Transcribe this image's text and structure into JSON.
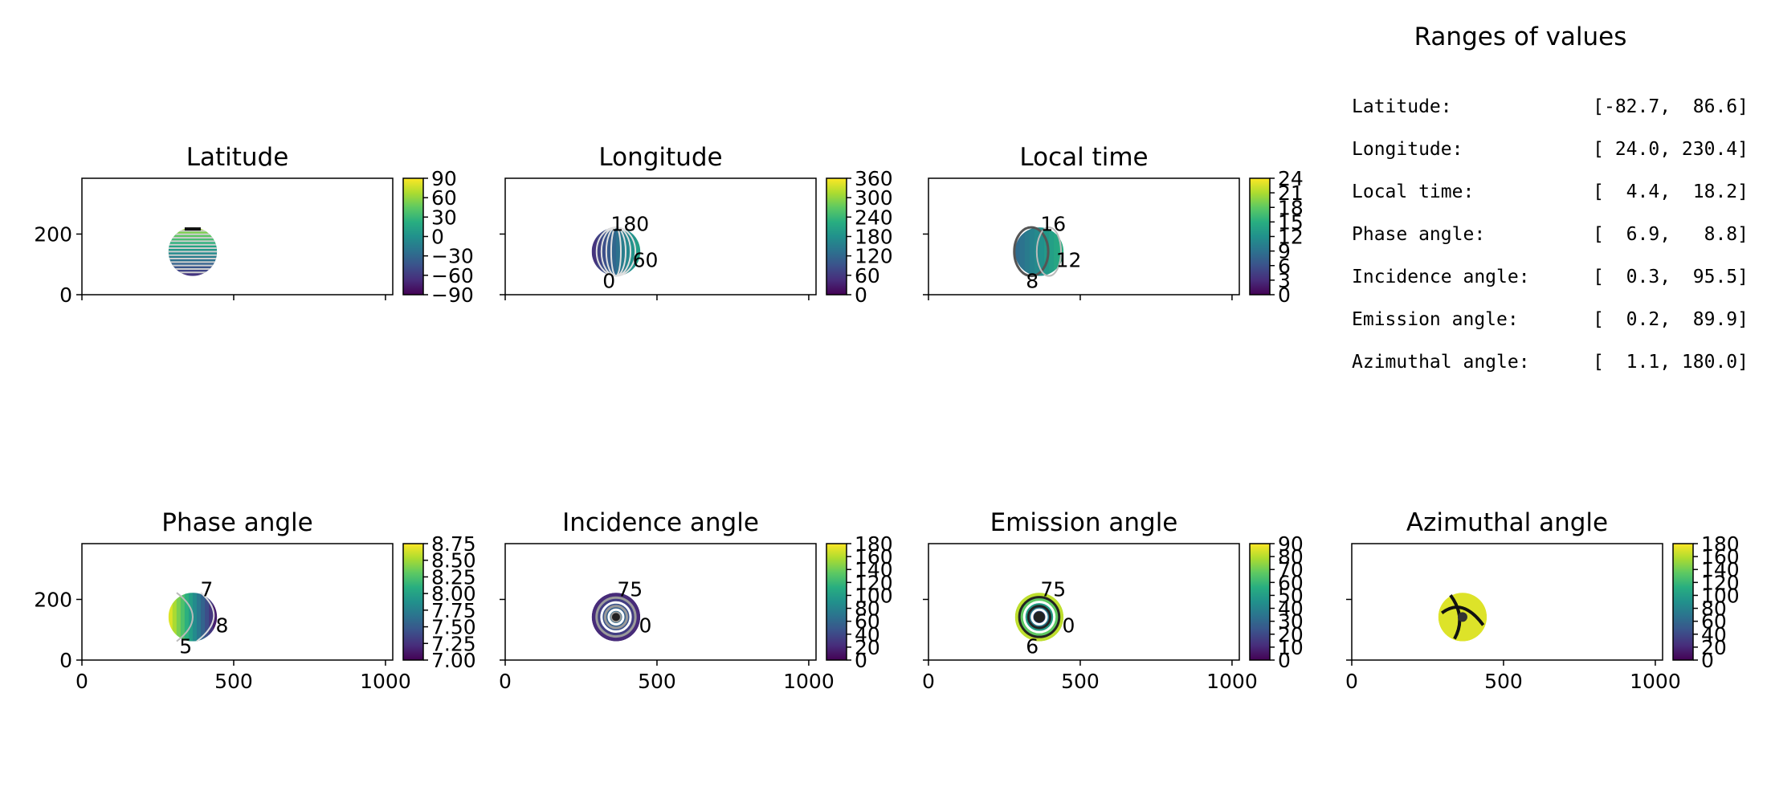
{
  "chart_data": {
    "type": "heatmap",
    "panels": [
      {
        "title": "Latitude",
        "cbar_ticks": [
          "90",
          "60",
          "30",
          "0",
          "−30",
          "−60",
          "−90"
        ],
        "vmin": -90,
        "vmax": 90,
        "contour_labels": [],
        "xticklabels": [
          "",
          "",
          ""
        ],
        "yticklabels": [
          "200",
          "0"
        ]
      },
      {
        "title": "Longitude",
        "cbar_ticks": [
          "360",
          "300",
          "240",
          "180",
          "120",
          "60",
          "0"
        ],
        "vmin": 0,
        "vmax": 360,
        "contour_labels": [
          "180",
          "60",
          "0"
        ],
        "xticklabels": [
          "",
          "",
          ""
        ],
        "yticklabels": [
          "",
          ""
        ]
      },
      {
        "title": "Local time",
        "cbar_ticks": [
          "24",
          "21",
          "18",
          "15",
          "12",
          "9",
          "6",
          "3",
          "0"
        ],
        "vmin": 0,
        "vmax": 24,
        "contour_labels": [
          "16",
          "12",
          "8"
        ],
        "xticklabels": [
          "",
          "",
          ""
        ],
        "yticklabels": [
          "",
          ""
        ]
      },
      {
        "title": "Phase angle",
        "cbar_ticks": [
          "8.75",
          "8.50",
          "8.25",
          "8.00",
          "7.75",
          "7.50",
          "7.25",
          "7.00"
        ],
        "vmin": 6.9,
        "vmax": 8.8,
        "contour_labels": [
          "7",
          "8",
          "5"
        ],
        "xticklabels": [
          "0",
          "500",
          "1000"
        ],
        "yticklabels": [
          "200",
          "0"
        ]
      },
      {
        "title": "Incidence angle",
        "cbar_ticks": [
          "180",
          "160",
          "140",
          "120",
          "100",
          "80",
          "60",
          "40",
          "20",
          "0"
        ],
        "vmin": 0,
        "vmax": 180,
        "contour_labels": [
          "75",
          "0"
        ],
        "xticklabels": [
          "0",
          "500",
          "1000"
        ],
        "yticklabels": [
          "",
          ""
        ]
      },
      {
        "title": "Emission angle",
        "cbar_ticks": [
          "90",
          "80",
          "70",
          "60",
          "50",
          "40",
          "30",
          "20",
          "10",
          "0"
        ],
        "vmin": 0,
        "vmax": 90,
        "contour_labels": [
          "75",
          "0",
          "6"
        ],
        "xticklabels": [
          "0",
          "500",
          "1000"
        ],
        "yticklabels": [
          "",
          ""
        ]
      },
      {
        "title": "Azimuthal angle",
        "cbar_ticks": [
          "180",
          "160",
          "140",
          "120",
          "100",
          "80",
          "60",
          "40",
          "20",
          "0"
        ],
        "vmin": 0,
        "vmax": 180,
        "contour_labels": [],
        "xticklabels": [
          "0",
          "500",
          "1000"
        ],
        "yticklabels": [
          "",
          ""
        ]
      }
    ],
    "x_range": [
      0,
      1024
    ],
    "y_range": [
      0,
      384
    ],
    "colormap": "viridis",
    "disc": {
      "center_x": 365,
      "center_y": 142,
      "radius": 80
    },
    "ranges_table": {
      "title": "Ranges of values",
      "rows": [
        {
          "label": "Latitude:",
          "range": "[-82.7,  86.6]"
        },
        {
          "label": "Longitude:",
          "range": "[ 24.0, 230.4]"
        },
        {
          "label": "Local time:",
          "range": "[  4.4,  18.2]"
        },
        {
          "label": "Phase angle:",
          "range": "[  6.9,   8.8]"
        },
        {
          "label": "Incidence angle:",
          "range": "[  0.3,  95.5]"
        },
        {
          "label": "Emission angle:",
          "range": "[  0.2,  89.9]"
        },
        {
          "label": "Azimuthal angle:",
          "range": "[  1.1, 180.0]"
        }
      ]
    }
  }
}
